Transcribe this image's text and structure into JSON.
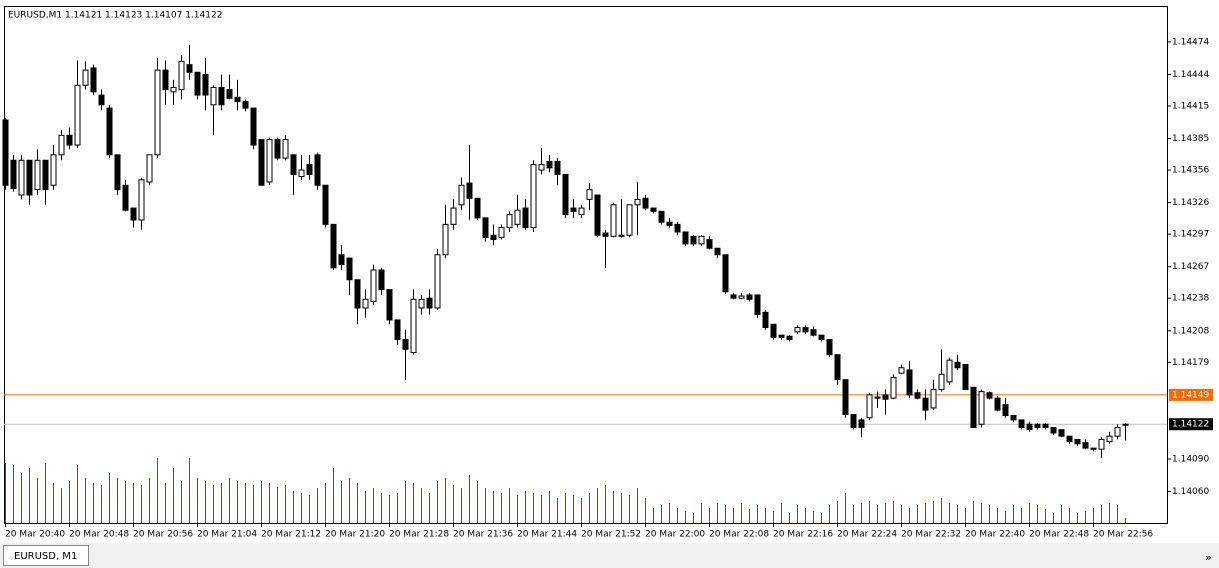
{
  "chart_data": {
    "type": "candlestick",
    "header": "EURUSD,M1  1.14121 1.14123 1.14107 1.14122",
    "tab": "EURUSD, M1",
    "more": "»",
    "categories": [
      "20 Mar 20:40",
      null,
      null,
      null,
      null,
      null,
      null,
      null,
      "20 Mar 20:48",
      null,
      null,
      null,
      null,
      null,
      null,
      null,
      "20 Mar 20:56",
      null,
      null,
      null,
      null,
      null,
      null,
      null,
      "20 Mar 21:04",
      null,
      null,
      null,
      null,
      null,
      null,
      null,
      "20 Mar 21:12",
      null,
      null,
      null,
      null,
      null,
      null,
      null,
      "20 Mar 21:20",
      null,
      null,
      null,
      null,
      null,
      null,
      null,
      "20 Mar 21:28",
      null,
      null,
      null,
      null,
      null,
      null,
      null,
      "20 Mar 21:36",
      null,
      null,
      null,
      null,
      null,
      null,
      null,
      "20 Mar 21:44",
      null,
      null,
      null,
      null,
      null,
      null,
      null,
      "20 Mar 21:52",
      null,
      null,
      null,
      null,
      null,
      null,
      null,
      "20 Mar 22:00",
      null,
      null,
      null,
      null,
      null,
      null,
      null,
      "20 Mar 22:08",
      null,
      null,
      null,
      null,
      null,
      null,
      null,
      "20 Mar 22:16",
      null,
      null,
      null,
      null,
      null,
      null,
      null,
      "20 Mar 22:24",
      null,
      null,
      null,
      null,
      null,
      null,
      null,
      "20 Mar 22:32",
      null,
      null,
      null,
      null,
      null,
      null,
      null,
      "20 Mar 22:40",
      null,
      null,
      null,
      null,
      null,
      null,
      null,
      "20 Mar 22:48",
      null,
      null,
      null,
      null,
      null,
      null,
      null,
      "20 Mar 22:56",
      null,
      null,
      null,
      null
    ],
    "open": [
      1.14402,
      1.14365,
      1.14333,
      1.14365,
      1.14338,
      1.14365,
      1.14342,
      1.1437,
      1.14388,
      1.14379,
      1.14434,
      1.1445,
      1.14425,
      1.14413,
      1.1437,
      1.14342,
      1.14321,
      1.1431,
      1.14345,
      1.1437,
      1.14448,
      1.14428,
      1.1443,
      1.14453,
      1.14446,
      1.14444,
      1.14416,
      1.14432,
      1.1443,
      1.14423,
      1.14419,
      1.14413,
      1.14384,
      1.14345,
      1.14384,
      1.14367,
      1.1437,
      1.1435,
      1.14361,
      1.1437,
      1.14342,
      1.14306,
      1.14278,
      1.14275,
      1.14255,
      1.14229,
      1.14235,
      1.14264,
      1.14246,
      1.14218,
      1.142,
      1.14188,
      1.14229,
      1.14238,
      1.14229,
      1.14278,
      1.14306,
      1.14324,
      1.14344,
      1.1433,
      1.14312,
      1.14296,
      1.14294,
      1.14303,
      1.14306,
      1.14321,
      1.14303,
      1.14356,
      1.14364,
      1.14364,
      1.14352,
      1.14321,
      1.14315,
      1.14329,
      1.14333,
      1.14298,
      1.14295,
      1.14295,
      1.14296,
      1.14324,
      1.1433,
      1.14321,
      1.14318,
      1.14308,
      1.14306,
      1.14299,
      1.14295,
      1.14288,
      1.14292,
      1.14284,
      1.14278,
      1.14241,
      1.14238,
      1.14241,
      1.14241,
      1.14225,
      1.14214,
      1.14204,
      1.14203,
      1.14207,
      1.14211,
      1.14209,
      1.14204,
      1.142,
      1.14186,
      1.14163,
      1.14131,
      1.14126,
      1.14128,
      1.14146,
      1.14149,
      1.14146,
      1.14169,
      1.14172,
      1.14151,
      1.14146,
      1.14137,
      1.14154,
      1.14161,
      1.14179,
      1.14177,
      1.14156,
      1.14122,
      1.14151,
      1.14146,
      1.1414,
      1.1413,
      1.14126,
      1.14122,
      1.14122,
      1.14122,
      1.14119,
      1.14117,
      1.14111,
      1.14108,
      1.14105,
      1.141,
      1.14099,
      1.14106,
      1.14111,
      1.14121
    ],
    "high": [
      1.14404,
      1.1437,
      1.1437,
      1.14365,
      1.14375,
      1.14365,
      1.14379,
      1.14393,
      1.14395,
      1.14457,
      1.14456,
      1.14453,
      1.1443,
      1.14416,
      1.1437,
      1.14347,
      1.14321,
      1.14349,
      1.1437,
      1.14459,
      1.14457,
      1.14439,
      1.14462,
      1.14471,
      1.14446,
      1.14459,
      1.14434,
      1.14444,
      1.14444,
      1.14439,
      1.14421,
      1.14413,
      1.14384,
      1.14386,
      1.14386,
      1.14388,
      1.1437,
      1.1437,
      1.1437,
      1.14372,
      1.14342,
      1.14306,
      1.14287,
      1.14275,
      1.14255,
      1.14246,
      1.14269,
      1.14266,
      1.14246,
      1.14218,
      1.14209,
      1.14246,
      1.14241,
      1.14246,
      1.14283,
      1.14324,
      1.14329,
      1.14349,
      1.14379,
      1.1433,
      1.14312,
      1.14306,
      1.14306,
      1.14318,
      1.14333,
      1.14329,
      1.14365,
      1.14376,
      1.1437,
      1.14367,
      1.14352,
      1.14329,
      1.14324,
      1.14344,
      1.14333,
      1.14301,
      1.14326,
      1.14329,
      1.14324,
      1.14345,
      1.14333,
      1.14321,
      1.14318,
      1.14312,
      1.14308,
      1.14299,
      1.14296,
      1.14296,
      1.14295,
      1.14284,
      1.14278,
      1.14243,
      1.14243,
      1.14243,
      1.14241,
      1.14227,
      1.14214,
      1.14204,
      1.14204,
      1.14213,
      1.14213,
      1.14212,
      1.14204,
      1.142,
      1.14186,
      1.14163,
      1.14131,
      1.14128,
      1.14151,
      1.14152,
      1.14154,
      1.14168,
      1.14177,
      1.1418,
      1.14154,
      1.14154,
      1.14163,
      1.14191,
      1.14183,
      1.14186,
      1.14177,
      1.14156,
      1.14154,
      1.14152,
      1.14148,
      1.14146,
      1.1413,
      1.14126,
      1.14124,
      1.14123,
      1.14123,
      1.14119,
      1.14117,
      1.14111,
      1.14108,
      1.14108,
      1.141,
      1.1411,
      1.14115,
      1.14122,
      1.14123
    ],
    "low": [
      1.14338,
      1.14336,
      1.14329,
      1.14324,
      1.14333,
      1.14324,
      1.14338,
      1.14365,
      1.14375,
      1.14376,
      1.1443,
      1.14425,
      1.14411,
      1.14367,
      1.14333,
      1.14318,
      1.14303,
      1.14301,
      1.14342,
      1.14367,
      1.14416,
      1.14416,
      1.14421,
      1.14439,
      1.14421,
      1.14411,
      1.14388,
      1.14411,
      1.14421,
      1.14411,
      1.1441,
      1.14375,
      1.14342,
      1.14342,
      1.14365,
      1.14365,
      1.14333,
      1.14347,
      1.14347,
      1.14338,
      1.14303,
      1.14264,
      1.14264,
      1.14241,
      1.14214,
      1.1422,
      1.14232,
      1.14241,
      1.14214,
      1.14195,
      1.14163,
      1.14186,
      1.14223,
      1.14223,
      1.14227,
      1.14275,
      1.14301,
      1.14319,
      1.1431,
      1.1431,
      1.1429,
      1.14287,
      1.14292,
      1.14299,
      1.14303,
      1.14301,
      1.14299,
      1.14352,
      1.14354,
      1.14342,
      1.14312,
      1.14312,
      1.14312,
      1.14319,
      1.14294,
      1.14266,
      1.14294,
      1.14294,
      1.14294,
      1.14296,
      1.14319,
      1.14316,
      1.14306,
      1.14303,
      1.14296,
      1.14286,
      1.14286,
      1.14286,
      1.14283,
      1.14275,
      1.14242,
      1.14237,
      1.14237,
      1.14235,
      1.1422,
      1.14209,
      1.142,
      1.142,
      1.14198,
      1.14205,
      1.14205,
      1.14203,
      1.14198,
      1.14184,
      1.14158,
      1.14128,
      1.14117,
      1.1411,
      1.14126,
      1.14137,
      1.14131,
      1.14145,
      1.14168,
      1.14146,
      1.14145,
      1.14126,
      1.14135,
      1.14152,
      1.14158,
      1.14172,
      1.14154,
      1.14119,
      1.14119,
      1.14145,
      1.14134,
      1.14128,
      1.14124,
      1.14117,
      1.14115,
      1.14117,
      1.14117,
      1.14112,
      1.1411,
      1.14104,
      1.14102,
      1.14099,
      1.14097,
      1.14091,
      1.14104,
      1.14108,
      1.14107
    ],
    "close": [
      1.14342,
      1.14339,
      1.14365,
      1.14333,
      1.14365,
      1.14338,
      1.1437,
      1.14388,
      1.14379,
      1.14434,
      1.14448,
      1.14428,
      1.14416,
      1.1437,
      1.14338,
      1.14319,
      1.1431,
      1.14347,
      1.1437,
      1.14448,
      1.1443,
      1.14432,
      1.14456,
      1.14446,
      1.14425,
      1.14425,
      1.14432,
      1.14416,
      1.14422,
      1.14419,
      1.14413,
      1.14379,
      1.14342,
      1.14384,
      1.14367,
      1.14384,
      1.14352,
      1.14356,
      1.14352,
      1.14342,
      1.14306,
      1.14266,
      1.14269,
      1.14255,
      1.14229,
      1.14237,
      1.14264,
      1.14246,
      1.14218,
      1.142,
      1.14191,
      1.14237,
      1.14237,
      1.14229,
      1.14278,
      1.14306,
      1.14321,
      1.14342,
      1.1433,
      1.14312,
      1.14294,
      1.14292,
      1.14303,
      1.14315,
      1.14319,
      1.14303,
      1.14361,
      1.14361,
      1.14358,
      1.14352,
      1.14315,
      1.14318,
      1.14321,
      1.14338,
      1.14296,
      1.14295,
      1.14324,
      1.14296,
      1.14324,
      1.14329,
      1.14321,
      1.14318,
      1.14308,
      1.14305,
      1.14299,
      1.14288,
      1.14288,
      1.14295,
      1.14284,
      1.14278,
      1.14244,
      1.14238,
      1.1424,
      1.14237,
      1.14223,
      1.14211,
      1.14202,
      1.14202,
      1.142,
      1.14211,
      1.14207,
      1.14204,
      1.142,
      1.14186,
      1.14163,
      1.14131,
      1.14119,
      1.14119,
      1.14149,
      1.14147,
      1.14145,
      1.14165,
      1.14174,
      1.14149,
      1.14146,
      1.14135,
      1.14154,
      1.14168,
      1.14181,
      1.14174,
      1.14154,
      1.14119,
      1.14152,
      1.14146,
      1.14135,
      1.1413,
      1.14126,
      1.14119,
      1.14117,
      1.14119,
      1.14119,
      1.14114,
      1.14111,
      1.14106,
      1.14104,
      1.141,
      1.14099,
      1.14108,
      1.14111,
      1.14119,
      1.14122
    ],
    "volume": [
      60,
      58,
      50,
      55,
      45,
      60,
      40,
      35,
      42,
      58,
      45,
      40,
      38,
      50,
      45,
      42,
      40,
      38,
      45,
      65,
      40,
      55,
      42,
      65,
      45,
      42,
      38,
      40,
      45,
      42,
      40,
      38,
      42,
      40,
      36,
      38,
      32,
      30,
      28,
      35,
      40,
      55,
      42,
      45,
      40,
      32,
      35,
      30,
      28,
      30,
      42,
      40,
      35,
      30,
      42,
      45,
      38,
      35,
      48,
      42,
      35,
      32,
      30,
      35,
      28,
      32,
      30,
      28,
      32,
      25,
      30,
      28,
      25,
      30,
      35,
      38,
      32,
      30,
      28,
      35,
      25,
      15,
      18,
      20,
      15,
      12,
      10,
      20,
      15,
      20,
      18,
      15,
      20,
      14,
      18,
      15,
      12,
      20,
      10,
      18,
      15,
      12,
      10,
      18,
      22,
      30,
      18,
      20,
      22,
      18,
      20,
      22,
      18,
      15,
      18,
      20,
      22,
      25,
      20,
      18,
      15,
      22,
      20,
      18,
      15,
      12,
      18,
      15,
      20,
      18,
      14,
      10,
      18,
      15,
      10,
      12,
      15,
      18,
      20,
      18,
      5
    ],
    "vlim": [
      0,
      100
    ],
    "volume_color": "#008000",
    "ylim": [
      1.14032,
      1.14507
    ],
    "yticks": [
      1.14474,
      1.14444,
      1.14415,
      1.14385,
      1.14356,
      1.14326,
      1.14297,
      1.14267,
      1.14238,
      1.14208,
      1.14179,
      {
        "value": 1.1409,
        "label": "1.14090"
      },
      {
        "value": 1.1406,
        "label": "1.14060"
      }
    ],
    "levels": [
      {
        "value": 1.14149,
        "color": "#ff6a00"
      },
      {
        "value": 1.14122,
        "color": "#000000"
      }
    ]
  }
}
